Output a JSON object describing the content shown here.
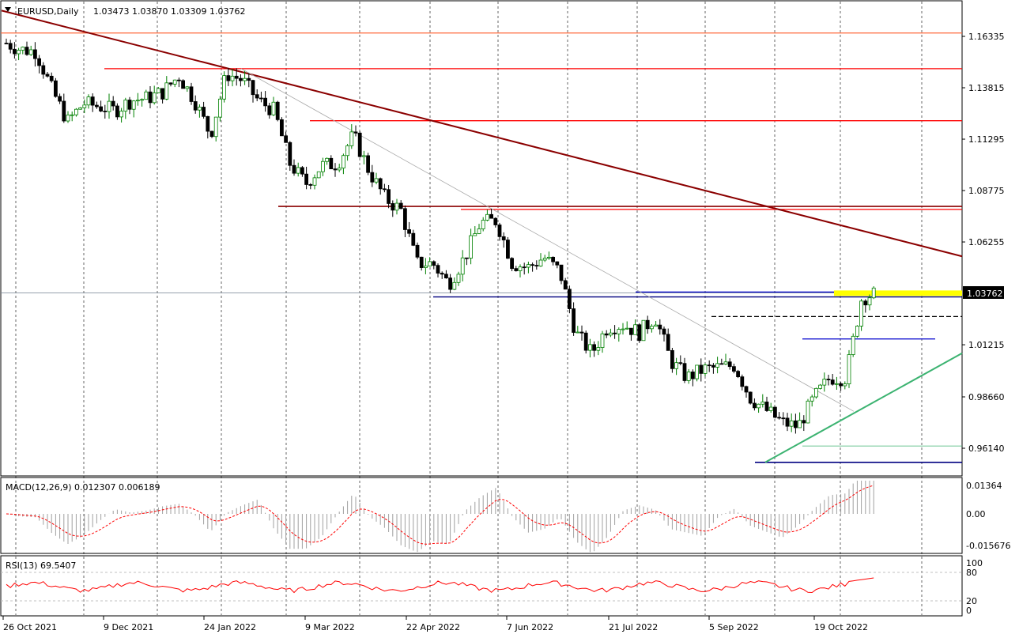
{
  "header": {
    "symbol_label": "EURUSD,Daily",
    "ohlc_label": "1.03473 1.03870 1.03309 1.03762"
  },
  "price_axis": {
    "labels": [
      "1.16335",
      "1.13815",
      "1.11295",
      "1.08775",
      "1.06255",
      "1.01215",
      "0.98660",
      "0.96140"
    ],
    "current_price_label": "1.03762"
  },
  "macd": {
    "label": "MACD(12,26,9) 0.012307 0.006189",
    "axis_labels": [
      "0.01364",
      "0.00",
      "-0.015676"
    ]
  },
  "rsi": {
    "label": "RSI(13) 69.5407",
    "axis_labels": [
      "100",
      "80",
      "20",
      "0"
    ]
  },
  "time_axis": {
    "labels": [
      "26 Oct 2021",
      "9 Dec 2021",
      "24 Jan 2022",
      "9 Mar 2022",
      "22 Apr 2022",
      "7 Jun 2022",
      "21 Jul 2022",
      "5 Sep 2022",
      "19 Oct 2022"
    ]
  },
  "chart_data": {
    "type": "candlestick",
    "symbol": "EURUSD",
    "timeframe": "Daily",
    "ohlc_last": {
      "open": 1.03473,
      "high": 1.0387,
      "low": 1.03309,
      "close": 1.03762
    },
    "ylim": [
      0.9525,
      1.1735
    ],
    "close_series": [
      {
        "date": "2021-10-26",
        "close": 1.16
      },
      {
        "date": "2021-11-01",
        "close": 1.157
      },
      {
        "date": "2021-11-08",
        "close": 1.156
      },
      {
        "date": "2021-11-15",
        "close": 1.1375
      },
      {
        "date": "2021-11-22",
        "close": 1.1215
      },
      {
        "date": "2021-11-29",
        "close": 1.1305
      },
      {
        "date": "2021-12-06",
        "close": 1.129
      },
      {
        "date": "2021-12-13",
        "close": 1.127
      },
      {
        "date": "2021-12-20",
        "close": 1.132
      },
      {
        "date": "2021-12-27",
        "close": 1.133
      },
      {
        "date": "2022-01-03",
        "close": 1.136
      },
      {
        "date": "2022-01-10",
        "close": 1.144
      },
      {
        "date": "2022-01-17",
        "close": 1.132
      },
      {
        "date": "2022-01-24",
        "close": 1.115
      },
      {
        "date": "2022-01-31",
        "close": 1.145
      },
      {
        "date": "2022-02-07",
        "close": 1.142
      },
      {
        "date": "2022-02-14",
        "close": 1.132
      },
      {
        "date": "2022-02-21",
        "close": 1.127
      },
      {
        "date": "2022-02-28",
        "close": 1.101
      },
      {
        "date": "2022-03-07",
        "close": 1.091
      },
      {
        "date": "2022-03-14",
        "close": 1.1
      },
      {
        "date": "2022-03-21",
        "close": 1.101
      },
      {
        "date": "2022-03-28",
        "close": 1.115
      },
      {
        "date": "2022-04-04",
        "close": 1.097
      },
      {
        "date": "2022-04-11",
        "close": 1.084
      },
      {
        "date": "2022-04-18",
        "close": 1.078
      },
      {
        "date": "2022-04-25",
        "close": 1.052
      },
      {
        "date": "2022-05-02",
        "close": 1.052
      },
      {
        "date": "2022-05-09",
        "close": 1.042
      },
      {
        "date": "2022-05-16",
        "close": 1.055
      },
      {
        "date": "2022-05-23",
        "close": 1.072
      },
      {
        "date": "2022-05-30",
        "close": 1.073
      },
      {
        "date": "2022-06-06",
        "close": 1.052
      },
      {
        "date": "2022-06-13",
        "close": 1.05
      },
      {
        "date": "2022-06-20",
        "close": 1.055
      },
      {
        "date": "2022-06-27",
        "close": 1.048
      },
      {
        "date": "2022-07-04",
        "close": 1.018
      },
      {
        "date": "2022-07-11",
        "close": 1.008
      },
      {
        "date": "2022-07-18",
        "close": 1.021
      },
      {
        "date": "2022-07-25",
        "close": 1.022
      },
      {
        "date": "2022-08-01",
        "close": 1.018
      },
      {
        "date": "2022-08-08",
        "close": 1.026
      },
      {
        "date": "2022-08-15",
        "close": 1.004
      },
      {
        "date": "2022-08-22",
        "close": 0.996
      },
      {
        "date": "2022-08-29",
        "close": 1.0
      },
      {
        "date": "2022-09-05",
        "close": 1.001
      },
      {
        "date": "2022-09-12",
        "close": 1.002
      },
      {
        "date": "2022-09-19",
        "close": 0.986
      },
      {
        "date": "2022-09-26",
        "close": 0.98
      },
      {
        "date": "2022-10-03",
        "close": 0.974
      },
      {
        "date": "2022-10-10",
        "close": 0.972
      },
      {
        "date": "2022-10-17",
        "close": 0.986
      },
      {
        "date": "2022-10-24",
        "close": 0.996
      },
      {
        "date": "2022-10-31",
        "close": 0.996
      },
      {
        "date": "2022-11-07",
        "close": 1.035
      },
      {
        "date": "2022-11-14",
        "close": 1.0376
      }
    ],
    "levels": [
      {
        "price": 1.165,
        "color": "#ff6a3d"
      },
      {
        "price": 1.1475,
        "color": "#ff0000"
      },
      {
        "price": 1.122,
        "color": "#ff0000"
      },
      {
        "price": 1.08,
        "color": "#8b0000"
      },
      {
        "price": 1.0785,
        "color": "#ff0000"
      },
      {
        "price": 1.038,
        "color": "#0000cd"
      },
      {
        "price": 1.0356,
        "color": "#000080"
      },
      {
        "price": 1.026,
        "color": "#000000"
      },
      {
        "price": 1.015,
        "color": "#0000cd"
      },
      {
        "price": 0.9545,
        "color": "#000080"
      }
    ],
    "macd": {
      "macd": 0.012307,
      "signal": 0.006189,
      "ylim": [
        -0.015676,
        0.01364
      ]
    },
    "rsi": {
      "period": 13,
      "value": 69.5407,
      "levels": [
        80,
        20
      ],
      "ylim": [
        0,
        100
      ]
    },
    "colors": {
      "up": "#008000",
      "down": "#000000",
      "highlight": "#ffff00",
      "trend_main": "#8b0000",
      "trend_up": "#3cb371"
    }
  }
}
